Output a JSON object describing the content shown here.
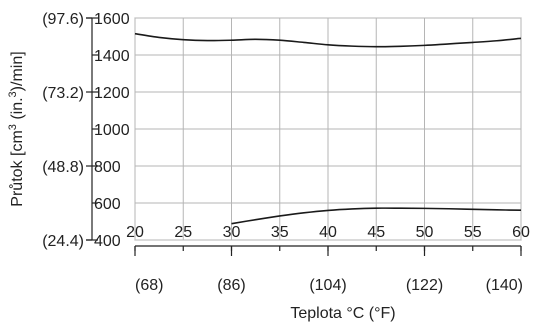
{
  "chart_data": {
    "type": "line",
    "xlabel": "Teplota °C (°F)",
    "ylabel": "Průtok [cm³ (in.³)/min]",
    "ylabel_parts": {
      "pre": "Průtok [cm",
      "sup1": "3",
      "mid": " (in.",
      "sup2": "3",
      "post": ")/min]"
    },
    "xlim": [
      20,
      60
    ],
    "ylim": [
      400,
      1600
    ],
    "grid": true,
    "x_ticks": [
      20,
      25,
      30,
      35,
      40,
      45,
      50,
      55,
      60
    ],
    "x_ticks_labels": [
      "20",
      "25",
      "30",
      "35",
      "40",
      "45",
      "50",
      "55",
      "60"
    ],
    "x_secondary_ticks": [
      20,
      30,
      40,
      50,
      60
    ],
    "x_secondary_labels": [
      "(68)",
      "(86)",
      "(104)",
      "(122)",
      "(140)"
    ],
    "y_ticks": [
      400,
      600,
      800,
      1000,
      1200,
      1400,
      1600
    ],
    "y_ticks_labels": [
      "400",
      "600",
      "800",
      "1000",
      "1200",
      "1400",
      "1600"
    ],
    "y_secondary_ticks": [
      400,
      800,
      1200,
      1600
    ],
    "y_secondary_labels": [
      "(24.4)",
      "(48.8)",
      "(73.2)",
      "(97.6)"
    ],
    "series": [
      {
        "x": [
          20,
          22.5,
          25,
          27.5,
          30,
          32.5,
          35,
          37.5,
          40,
          42.5,
          45,
          47.5,
          50,
          52.5,
          55,
          57.5,
          60
        ],
        "y": [
          1515,
          1495,
          1483,
          1478,
          1480,
          1485,
          1480,
          1468,
          1455,
          1448,
          1445,
          1447,
          1452,
          1460,
          1468,
          1477,
          1490
        ]
      },
      {
        "x": [
          30,
          32.5,
          35,
          37.5,
          40,
          42.5,
          45,
          47.5,
          50,
          52.5,
          55,
          57.5,
          60
        ],
        "y": [
          488,
          510,
          530,
          547,
          560,
          568,
          572,
          572,
          571,
          569,
          566,
          563,
          561
        ]
      }
    ]
  }
}
